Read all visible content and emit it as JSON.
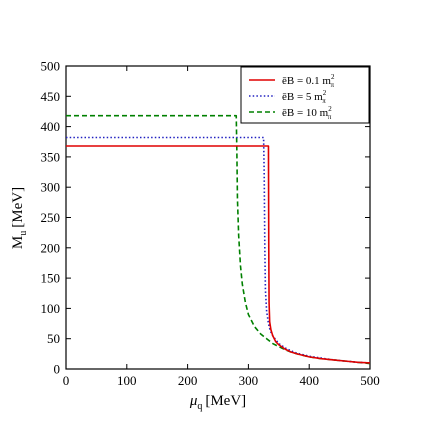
{
  "chart_data": {
    "type": "line",
    "xlabel_symbol": "μ",
    "xlabel_sub": "q",
    "xlabel_unit": "[MeV]",
    "ylabel_symbol": "M",
    "ylabel_sub": "u",
    "ylabel_unit": "[MeV]",
    "xlim": [
      0,
      500
    ],
    "ylim": [
      0,
      500
    ],
    "xticks": [
      0,
      100,
      200,
      300,
      400,
      500
    ],
    "yticks": [
      0,
      50,
      100,
      150,
      200,
      250,
      300,
      350,
      400,
      450,
      500
    ],
    "grid": false,
    "legend_position": "top-right",
    "series": [
      {
        "legend_main": "ēB = 0.1 m",
        "legend_sub": "π",
        "legend_sup": "2",
        "color": "#e00000",
        "dash": "solid",
        "x": [
          0,
          333,
          333.5,
          334,
          335,
          337,
          340,
          345,
          350,
          360,
          370,
          380,
          400,
          420,
          440,
          460,
          480,
          500
        ],
        "y": [
          368,
          368,
          200,
          110,
          78,
          65,
          55,
          45,
          40,
          33,
          28,
          25,
          20,
          17,
          15,
          13,
          11,
          10
        ]
      },
      {
        "legend_main": "ēB = 5 m",
        "legend_sub": "π",
        "legend_sup": "2",
        "color": "#2020c0",
        "dash": "dotted",
        "x": [
          0,
          325,
          326,
          327,
          328,
          330,
          333,
          336,
          340,
          345,
          350,
          360,
          370,
          380,
          400,
          420,
          440,
          460,
          480,
          500
        ],
        "y": [
          382,
          382,
          320,
          200,
          130,
          95,
          75,
          63,
          55,
          48,
          42,
          35,
          30,
          26,
          21,
          18,
          15,
          13,
          11,
          10
        ]
      },
      {
        "legend_main": "ēB = 10 m",
        "legend_sub": "π",
        "legend_sup": "2",
        "color": "#008000",
        "dash": "dashed",
        "x": [
          0,
          280,
          281,
          282,
          284,
          287,
          290,
          295,
          300,
          310,
          320,
          330,
          340,
          350,
          360,
          370,
          380,
          400,
          420,
          440,
          460,
          480,
          500
        ],
        "y": [
          418,
          418,
          360,
          280,
          220,
          170,
          140,
          110,
          90,
          70,
          58,
          50,
          42,
          37,
          32,
          28,
          25,
          20,
          17,
          15,
          13,
          11,
          9
        ]
      }
    ]
  }
}
